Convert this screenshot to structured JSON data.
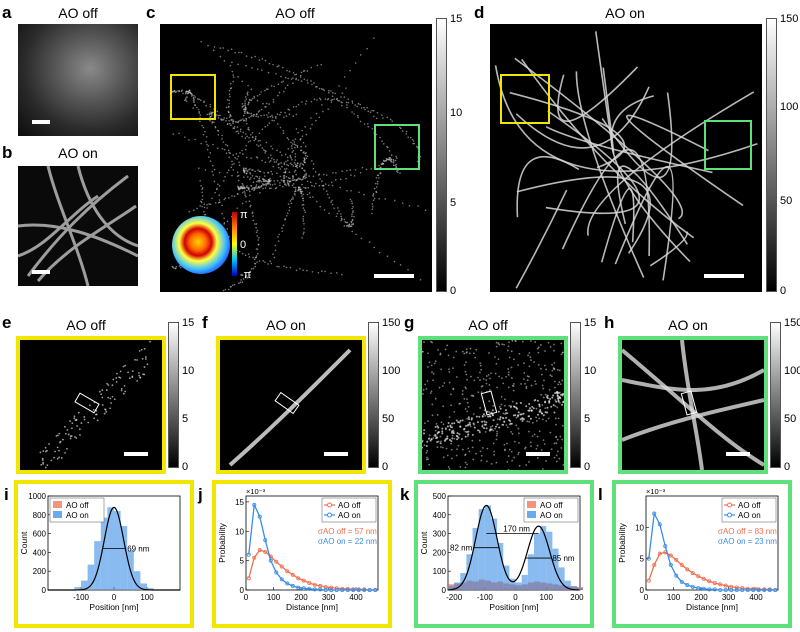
{
  "panels": {
    "a": {
      "label": "a",
      "title": "AO off"
    },
    "b": {
      "label": "b",
      "title": "AO on"
    },
    "c": {
      "label": "c",
      "title": "AO off",
      "colorbar_ticks": [
        "15",
        "10",
        "5",
        "0"
      ],
      "phase_ticks": [
        "π",
        "0",
        "-π"
      ]
    },
    "d": {
      "label": "d",
      "title": "AO on",
      "colorbar_ticks": [
        "150",
        "100",
        "50",
        "0"
      ]
    },
    "e": {
      "label": "e",
      "title": "AO off",
      "colorbar_ticks": [
        "15",
        "10",
        "5",
        "0"
      ],
      "frame_color": "#f2e600"
    },
    "f": {
      "label": "f",
      "title": "AO on",
      "colorbar_ticks": [
        "150",
        "100",
        "50",
        "0"
      ],
      "frame_color": "#f2e600"
    },
    "g": {
      "label": "g",
      "title": "AO off",
      "colorbar_ticks": [
        "15",
        "10",
        "5",
        "0"
      ],
      "frame_color": "#5fe07a"
    },
    "h": {
      "label": "h",
      "title": "AO on",
      "colorbar_ticks": [
        "150",
        "100",
        "50",
        "0"
      ],
      "frame_color": "#5fe07a"
    },
    "i": {
      "label": "i"
    },
    "j": {
      "label": "j"
    },
    "k": {
      "label": "k"
    },
    "l": {
      "label": "l"
    }
  },
  "colors": {
    "yellow": "#f2e600",
    "green": "#5fe07a",
    "ao_off": "#f07050",
    "ao_on": "#3a8ee6",
    "fit": "#000000"
  },
  "chart_data": [
    {
      "panel": "i",
      "type": "bar",
      "xlabel": "Position [nm]",
      "ylabel": "Count",
      "xlim": [
        -200,
        200
      ],
      "ylim": [
        0,
        1000
      ],
      "xticks": [
        "-100",
        "0",
        "100"
      ],
      "yticks": [
        "0",
        "200",
        "400",
        "600",
        "800",
        "1000"
      ],
      "legend": [
        "AO off",
        "AO on"
      ],
      "legend_position": "top-left",
      "annotations": [
        "69 nm"
      ],
      "bin_centers": [
        -190,
        -170,
        -150,
        -130,
        -110,
        -90,
        -70,
        -50,
        -30,
        -10,
        10,
        30,
        50,
        70,
        90,
        110,
        130,
        150,
        170,
        190
      ],
      "series": [
        {
          "name": "AO off",
          "values": [
            3,
            3,
            4,
            4,
            5,
            5,
            6,
            7,
            8,
            8,
            8,
            8,
            7,
            6,
            5,
            5,
            4,
            4,
            3,
            3
          ]
        },
        {
          "name": "AO on",
          "values": [
            0,
            0,
            2,
            6,
            30,
            100,
            270,
            520,
            770,
            880,
            840,
            680,
            420,
            200,
            70,
            20,
            5,
            2,
            0,
            0
          ]
        }
      ],
      "fit_fwhm_nm": 69
    },
    {
      "panel": "j",
      "type": "line",
      "xlabel": "Distance [nm]",
      "ylabel": "Probability",
      "y_scale_label": "×10⁻³",
      "xlim": [
        0,
        480
      ],
      "ylim": [
        0,
        0.016
      ],
      "xticks": [
        "0",
        "100",
        "200",
        "300",
        "400"
      ],
      "yticks": [
        "0",
        "5",
        "10",
        "15"
      ],
      "legend": [
        "AO off",
        "AO on"
      ],
      "legend_position": "top-right",
      "annotations": [
        {
          "series": "AO off",
          "sigma": "57 nm"
        },
        {
          "series": "AO on",
          "sigma": "22 nm"
        }
      ],
      "x": [
        10,
        30,
        50,
        70,
        90,
        110,
        130,
        150,
        170,
        190,
        210,
        230,
        250,
        270,
        290,
        310,
        330,
        350,
        370,
        390,
        410,
        430,
        450,
        470
      ],
      "series": [
        {
          "name": "AO off",
          "values": [
            0.002,
            0.0055,
            0.0068,
            0.0065,
            0.0057,
            0.0048,
            0.004,
            0.0032,
            0.0026,
            0.002,
            0.0016,
            0.0012,
            0.0009,
            0.0007,
            0.0005,
            0.0004,
            0.0003,
            0.0002,
            0.0002,
            0.0001,
            0.0001,
            0.0001,
            0.0,
            0.0
          ]
        },
        {
          "name": "AO on",
          "values": [
            0.006,
            0.0145,
            0.0125,
            0.0085,
            0.005,
            0.003,
            0.0018,
            0.0011,
            0.0007,
            0.0004,
            0.0003,
            0.0002,
            0.0001,
            0.0001,
            0.0,
            0.0,
            0.0,
            0.0,
            0.0,
            0.0,
            0.0,
            0.0,
            0.0,
            0.0
          ]
        }
      ]
    },
    {
      "panel": "k",
      "type": "bar",
      "xlabel": "Position [nm]",
      "ylabel": "Count",
      "xlim": [
        -220,
        210
      ],
      "ylim": [
        0,
        500
      ],
      "xticks": [
        "-200",
        "-100",
        "0",
        "100",
        "200"
      ],
      "yticks": [
        "0",
        "100",
        "200",
        "300",
        "400",
        "500"
      ],
      "legend": [
        "AO off",
        "AO on"
      ],
      "legend_position": "top-right",
      "annotations": [
        "82 nm",
        "170 nm",
        "85 nm"
      ],
      "bin_centers": [
        -210,
        -190,
        -170,
        -150,
        -130,
        -110,
        -90,
        -70,
        -50,
        -30,
        -10,
        10,
        30,
        50,
        70,
        90,
        110,
        130,
        150,
        170,
        190,
        210
      ],
      "series": [
        {
          "name": "AO off",
          "values": [
            30,
            35,
            40,
            50,
            45,
            55,
            50,
            40,
            45,
            35,
            30,
            25,
            30,
            40,
            45,
            40,
            35,
            30,
            25,
            20,
            20,
            15
          ]
        },
        {
          "name": "AO on",
          "values": [
            20,
            40,
            90,
            190,
            330,
            430,
            450,
            380,
            250,
            130,
            60,
            40,
            80,
            190,
            300,
            340,
            310,
            220,
            120,
            50,
            20,
            10
          ]
        }
      ]
    },
    {
      "panel": "l",
      "type": "line",
      "xlabel": "Distance [nm]",
      "ylabel": "Probability",
      "y_scale_label": "×10⁻³",
      "xlim": [
        0,
        480
      ],
      "ylim": [
        0,
        0.015
      ],
      "xticks": [
        "0",
        "100",
        "200",
        "300",
        "400"
      ],
      "yticks": [
        "0",
        "5",
        "10"
      ],
      "legend": [
        "AO off",
        "AO on"
      ],
      "legend_position": "top-right",
      "annotations": [
        {
          "series": "AO off",
          "sigma": "83 nm"
        },
        {
          "series": "AO on",
          "sigma": "23 nm"
        }
      ],
      "x": [
        10,
        30,
        50,
        70,
        90,
        110,
        130,
        150,
        170,
        190,
        210,
        230,
        250,
        270,
        290,
        310,
        330,
        350,
        370,
        390,
        410,
        430,
        450,
        470
      ],
      "series": [
        {
          "name": "AO off",
          "values": [
            0.0015,
            0.004,
            0.0058,
            0.006,
            0.0055,
            0.0048,
            0.004,
            0.0033,
            0.0027,
            0.0022,
            0.0018,
            0.0014,
            0.0011,
            0.0009,
            0.0007,
            0.0005,
            0.0004,
            0.0003,
            0.0002,
            0.0002,
            0.0001,
            0.0001,
            0.0001,
            0.0
          ]
        },
        {
          "name": "AO on",
          "values": [
            0.005,
            0.0122,
            0.0105,
            0.007,
            0.004,
            0.0023,
            0.0013,
            0.0008,
            0.0005,
            0.0003,
            0.0002,
            0.0001,
            0.0001,
            0.0,
            0.0,
            0.0,
            0.0,
            0.0,
            0.0,
            0.0,
            0.0,
            0.0,
            0.0,
            0.0
          ]
        }
      ]
    }
  ]
}
